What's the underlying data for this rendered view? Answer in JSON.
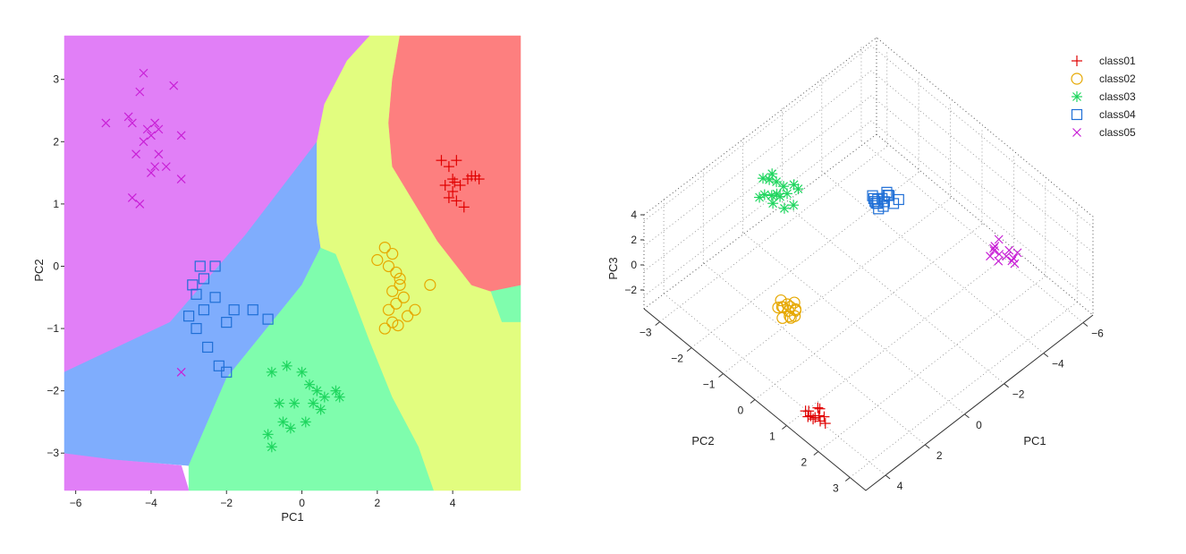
{
  "chart_data": [
    {
      "type": "scatter",
      "title": "",
      "xlabel": "PC1",
      "ylabel": "PC2",
      "xlim": [
        -6.3,
        5.8
      ],
      "ylim": [
        -3.6,
        3.7
      ],
      "xticks": [
        -6,
        -4,
        -2,
        0,
        2,
        4
      ],
      "yticks": [
        -3,
        -2,
        -1,
        0,
        1,
        2,
        3
      ],
      "xtick_labels": [
        "−6",
        "−4",
        "−2",
        "0",
        "2",
        "4"
      ],
      "ytick_labels": [
        "−3",
        "−2",
        "−1",
        "0",
        "1",
        "2",
        "3"
      ],
      "background": "classifier decision regions",
      "regions": [
        {
          "class": "class05",
          "color": "#e17ff7",
          "polygons": [
            [
              [
                -6.3,
                3.7
              ],
              [
                1.8,
                3.7
              ],
              [
                1.2,
                3.3
              ],
              [
                0.6,
                2.6
              ],
              [
                0.4,
                2.0
              ],
              [
                -1.5,
                0.5
              ],
              [
                -3.5,
                -0.9
              ],
              [
                -6.3,
                -1.7
              ]
            ],
            [
              [
                -6.3,
                -3.0
              ],
              [
                -5.0,
                -3.1
              ],
              [
                -3.2,
                -3.2
              ],
              [
                -3.0,
                -3.6
              ],
              [
                -6.3,
                -3.6
              ]
            ]
          ]
        },
        {
          "class": "class04",
          "color": "#7fadfd",
          "polygons": [
            [
              [
                -6.3,
                -1.7
              ],
              [
                -3.5,
                -0.9
              ],
              [
                -1.5,
                0.5
              ],
              [
                0.4,
                2.0
              ],
              [
                0.4,
                0.7
              ],
              [
                0.5,
                0.3
              ],
              [
                0.0,
                -0.3
              ],
              [
                -2.0,
                -1.8
              ],
              [
                -3.0,
                -3.2
              ],
              [
                -5.0,
                -3.1
              ],
              [
                -6.3,
                -3.0
              ]
            ]
          ]
        },
        {
          "class": "class03",
          "color": "#7ffdad",
          "polygons": [
            [
              [
                -3.0,
                -3.2
              ],
              [
                -2.0,
                -1.8
              ],
              [
                0.0,
                -0.3
              ],
              [
                0.5,
                0.3
              ],
              [
                0.9,
                0.2
              ],
              [
                1.3,
                -0.4
              ],
              [
                1.8,
                -1.2
              ],
              [
                2.4,
                -2.1
              ],
              [
                3.1,
                -2.9
              ],
              [
                3.5,
                -3.6
              ],
              [
                -3.0,
                -3.6
              ]
            ],
            [
              [
                5.0,
                -0.4
              ],
              [
                5.8,
                -0.3
              ],
              [
                5.8,
                -0.9
              ],
              [
                5.3,
                -0.9
              ]
            ]
          ]
        },
        {
          "class": "class02",
          "color": "#e2fd7f",
          "polygons": [
            [
              [
                1.8,
                3.7
              ],
              [
                2.6,
                3.7
              ],
              [
                2.4,
                3.0
              ],
              [
                2.3,
                2.3
              ],
              [
                2.4,
                1.6
              ],
              [
                3.0,
                1.0
              ],
              [
                3.6,
                0.4
              ],
              [
                4.5,
                -0.3
              ],
              [
                5.0,
                -0.4
              ],
              [
                5.3,
                -0.9
              ],
              [
                5.8,
                -0.9
              ],
              [
                5.8,
                -3.6
              ],
              [
                3.5,
                -3.6
              ],
              [
                3.1,
                -2.9
              ],
              [
                2.4,
                -2.1
              ],
              [
                1.8,
                -1.2
              ],
              [
                1.3,
                -0.4
              ],
              [
                0.9,
                0.2
              ],
              [
                0.5,
                0.3
              ],
              [
                0.4,
                0.7
              ],
              [
                0.4,
                2.0
              ],
              [
                0.6,
                2.6
              ],
              [
                1.2,
                3.3
              ]
            ]
          ]
        },
        {
          "class": "class01",
          "color": "#fd7f7f",
          "polygons": [
            [
              [
                2.6,
                3.7
              ],
              [
                5.8,
                3.7
              ],
              [
                5.8,
                -0.3
              ],
              [
                5.0,
                -0.4
              ],
              [
                4.5,
                -0.3
              ],
              [
                3.6,
                0.4
              ],
              [
                3.0,
                1.0
              ],
              [
                2.4,
                1.6
              ],
              [
                2.3,
                2.3
              ],
              [
                2.4,
                3.0
              ]
            ]
          ]
        }
      ],
      "series": [
        {
          "name": "class01",
          "marker": "+",
          "color": "#e00000",
          "x": [
            3.7,
            3.9,
            4.1,
            4.0,
            4.2,
            4.4,
            4.6,
            4.7,
            3.8,
            4.0,
            4.1,
            4.3,
            3.9,
            4.05,
            4.5
          ],
          "y": [
            1.7,
            1.6,
            1.7,
            1.4,
            1.3,
            1.4,
            1.45,
            1.4,
            1.3,
            1.2,
            1.05,
            0.95,
            1.1,
            1.35,
            1.45
          ]
        },
        {
          "name": "class02",
          "marker": "o",
          "color": "#e6a800",
          "x": [
            2.0,
            2.2,
            2.4,
            2.3,
            2.5,
            2.6,
            2.4,
            2.7,
            2.5,
            2.3,
            2.8,
            3.0,
            3.4,
            2.6,
            2.4,
            2.55,
            2.2
          ],
          "y": [
            0.1,
            0.3,
            0.2,
            0.0,
            -0.1,
            -0.3,
            -0.4,
            -0.5,
            -0.6,
            -0.7,
            -0.8,
            -0.7,
            -0.3,
            -0.2,
            -0.9,
            -0.95,
            -1.0
          ]
        },
        {
          "name": "class03",
          "marker": "*",
          "color": "#1fd65f",
          "x": [
            -0.8,
            -0.4,
            0.0,
            0.2,
            0.4,
            0.6,
            0.9,
            1.0,
            -0.2,
            0.3,
            0.5,
            -0.6,
            -0.5,
            -0.3,
            0.1,
            -0.9,
            -0.8
          ],
          "y": [
            -1.7,
            -1.6,
            -1.7,
            -1.9,
            -2.0,
            -2.1,
            -2.0,
            -2.1,
            -2.2,
            -2.2,
            -2.3,
            -2.2,
            -2.5,
            -2.6,
            -2.5,
            -2.7,
            -2.9
          ]
        },
        {
          "name": "class04",
          "marker": "s",
          "color": "#1f6fd6",
          "x": [
            -2.7,
            -2.3,
            -2.6,
            -2.9,
            -2.8,
            -3.0,
            -2.6,
            -2.3,
            -2.0,
            -1.8,
            -1.3,
            -0.9,
            -2.8,
            -2.5,
            -2.2,
            -2.0
          ],
          "y": [
            0.0,
            0.0,
            -0.2,
            -0.3,
            -0.45,
            -0.8,
            -0.7,
            -0.5,
            -0.9,
            -0.7,
            -0.7,
            -0.85,
            -1.0,
            -1.3,
            -1.6,
            -1.7
          ]
        },
        {
          "name": "class05",
          "marker": "x",
          "color": "#c81fd6",
          "x": [
            -4.2,
            -4.3,
            -3.4,
            -5.2,
            -4.6,
            -4.1,
            -3.9,
            -4.5,
            -3.8,
            -3.2,
            -4.0,
            -4.2,
            -4.4,
            -3.8,
            -3.6,
            -3.9,
            -4.0,
            -3.2,
            -4.5,
            -4.3,
            -3.2
          ],
          "y": [
            3.1,
            2.8,
            2.9,
            2.3,
            2.4,
            2.2,
            2.3,
            2.3,
            2.2,
            2.1,
            2.1,
            2.0,
            1.8,
            1.8,
            1.6,
            1.6,
            1.5,
            1.4,
            1.1,
            1.0,
            -1.7
          ]
        }
      ]
    },
    {
      "type": "scatter3d",
      "title": "",
      "xlabel": "PC1",
      "ylabel": "PC2",
      "zlabel": "PC3",
      "x_ticks": [
        "−6",
        "−4",
        "−2",
        "0",
        "2",
        "4"
      ],
      "y_ticks": [
        "−3",
        "−2",
        "−1",
        "0",
        "1",
        "2",
        "3"
      ],
      "z_ticks": [
        "4",
        "2",
        "0",
        "−2"
      ],
      "grid": "dotted box",
      "legend": {
        "position": "top-right",
        "entries": [
          "class01",
          "class02",
          "class03",
          "class04",
          "class05"
        ]
      },
      "series": [
        {
          "name": "class01",
          "marker": "+",
          "color": "#e00000",
          "x": [
            3.8,
            4.0,
            4.2,
            4.1,
            3.9,
            4.3,
            4.0,
            4.2,
            4.4,
            4.1,
            3.9,
            4.2
          ],
          "y": [
            1.3,
            1.4,
            1.2,
            1.5,
            1.3,
            1.4,
            1.6,
            1.1,
            1.3,
            1.2,
            1.5,
            1.4
          ],
          "z": [
            -2.5,
            -2.6,
            -2.4,
            -2.7,
            -2.3,
            -2.5,
            -2.8,
            -2.6,
            -2.4,
            -2.9,
            -2.6,
            -2.5
          ]
        },
        {
          "name": "class02",
          "marker": "o",
          "color": "#e6a800",
          "x": [
            2.3,
            2.5,
            2.4,
            2.6,
            2.7,
            2.2,
            2.5,
            2.8,
            2.4,
            2.6,
            2.3,
            2.7,
            2.5,
            2.4
          ],
          "y": [
            -0.4,
            -0.5,
            -0.6,
            -0.4,
            -0.7,
            -0.5,
            -0.3,
            -0.5,
            -0.8,
            -0.6,
            -0.4,
            -0.3,
            -0.7,
            -0.5
          ],
          "z": [
            0.1,
            0.0,
            0.2,
            -0.1,
            0.1,
            0.3,
            0.0,
            -0.2,
            0.1,
            0.2,
            0.0,
            0.1,
            -0.1,
            0.2
          ]
        },
        {
          "name": "class03",
          "marker": "*",
          "color": "#1fd65f",
          "x": [
            0.2,
            0.0,
            -0.3,
            0.1,
            0.3,
            -0.5,
            0.5,
            -0.2,
            0.0,
            0.4,
            -0.1,
            0.2,
            0.3,
            -0.4,
            0.1,
            0.6
          ],
          "y": [
            -2.3,
            -2.1,
            -2.4,
            -2.6,
            -2.0,
            -2.2,
            -2.5,
            -2.7,
            -1.9,
            -2.3,
            -2.5,
            -2.2,
            -2.4,
            -2.0,
            -2.8,
            -2.6
          ],
          "z": [
            2.8,
            3.0,
            2.6,
            3.2,
            2.4,
            2.9,
            2.7,
            3.1,
            2.5,
            2.3,
            3.0,
            2.8,
            2.6,
            3.1,
            2.9,
            2.4
          ]
        },
        {
          "name": "class04",
          "marker": "s",
          "color": "#1f6fd6",
          "x": [
            -2.6,
            -2.4,
            -2.2,
            -2.8,
            -2.5,
            -2.3,
            -2.0,
            -2.7,
            -2.4,
            -1.9,
            -2.2,
            -2.6,
            -2.1,
            -2.5,
            -2.3
          ],
          "y": [
            -0.5,
            -0.6,
            -0.4,
            -0.7,
            -0.3,
            -0.8,
            -0.5,
            -0.6,
            -0.9,
            -0.4,
            -0.7,
            -0.2,
            -0.6,
            -0.8,
            -0.5
          ],
          "z": [
            3.0,
            2.8,
            3.2,
            2.6,
            2.9,
            2.5,
            3.1,
            2.7,
            2.4,
            3.0,
            2.6,
            3.3,
            2.8,
            2.2,
            2.5
          ]
        },
        {
          "name": "class05",
          "marker": "x",
          "color": "#c81fd6",
          "x": [
            -4.2,
            -4.0,
            -4.4,
            -3.9,
            -4.3,
            -4.1,
            -3.8,
            -4.5,
            -4.0,
            -4.2,
            -3.7,
            -4.6,
            -4.3
          ],
          "y": [
            2.2,
            2.1,
            2.3,
            2.0,
            2.4,
            1.9,
            2.2,
            2.1,
            2.5,
            1.8,
            2.0,
            2.3,
            1.9
          ],
          "z": [
            1.8,
            2.0,
            1.6,
            2.2,
            1.5,
            2.1,
            1.9,
            1.7,
            2.3,
            1.6,
            2.0,
            1.8,
            2.4
          ]
        }
      ]
    }
  ]
}
